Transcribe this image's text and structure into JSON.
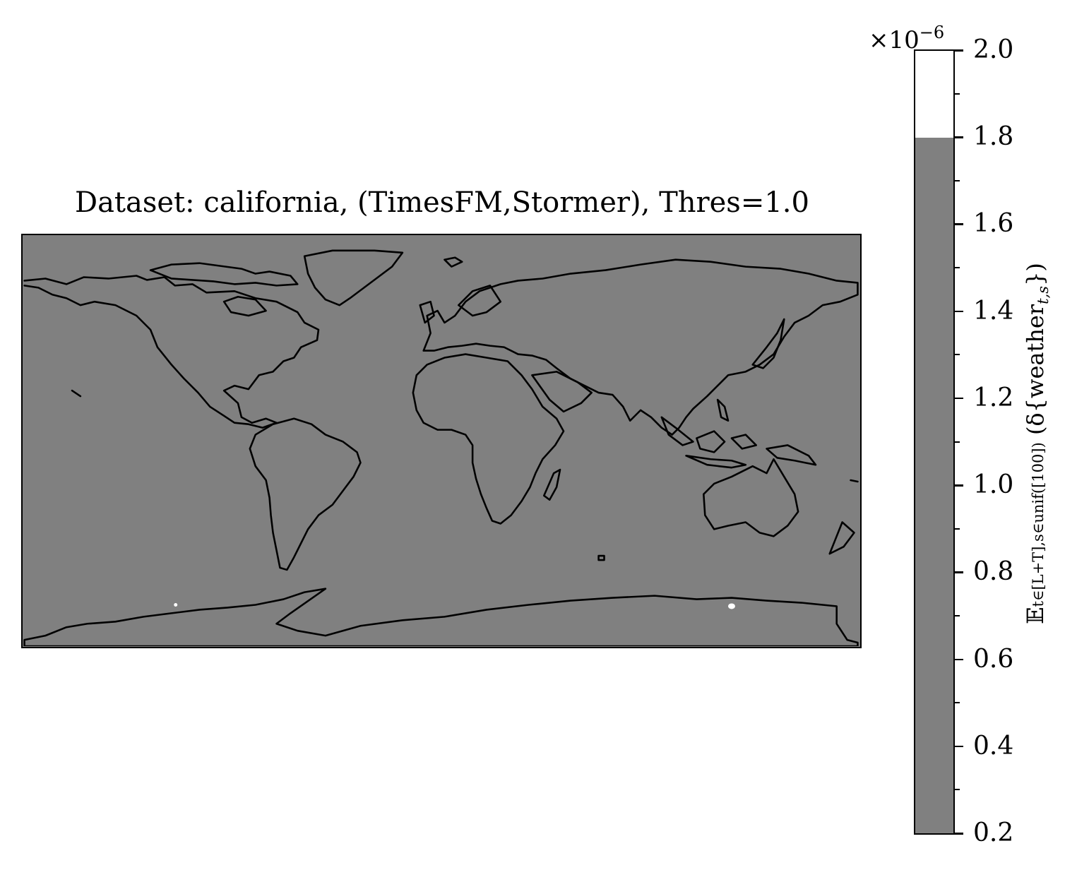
{
  "title": "Dataset: california, (TimesFM,Stormer), Thres=1.0",
  "map": {
    "projection": "PlateCarree",
    "background_color": "#808080",
    "coastline_color": "#000000",
    "highlight_color": "#ffffff"
  },
  "colorbar": {
    "offset_text_base": "×10",
    "offset_text_exponent": "−6",
    "min": 0.2,
    "max": 2.0,
    "fill_level": 1.8,
    "fill_color": "#808080",
    "above_color": "#ffffff",
    "ticks": [
      "0.2",
      "0.4",
      "0.6",
      "0.8",
      "1.0",
      "1.2",
      "1.4",
      "1.6",
      "1.8",
      "2.0"
    ],
    "label_main": "𝔼",
    "label_sub": "t∈[L+T],s∈unif([100])",
    "label_rest": " (δ{weather",
    "label_rest_sub": "t,s",
    "label_end": "})"
  }
}
